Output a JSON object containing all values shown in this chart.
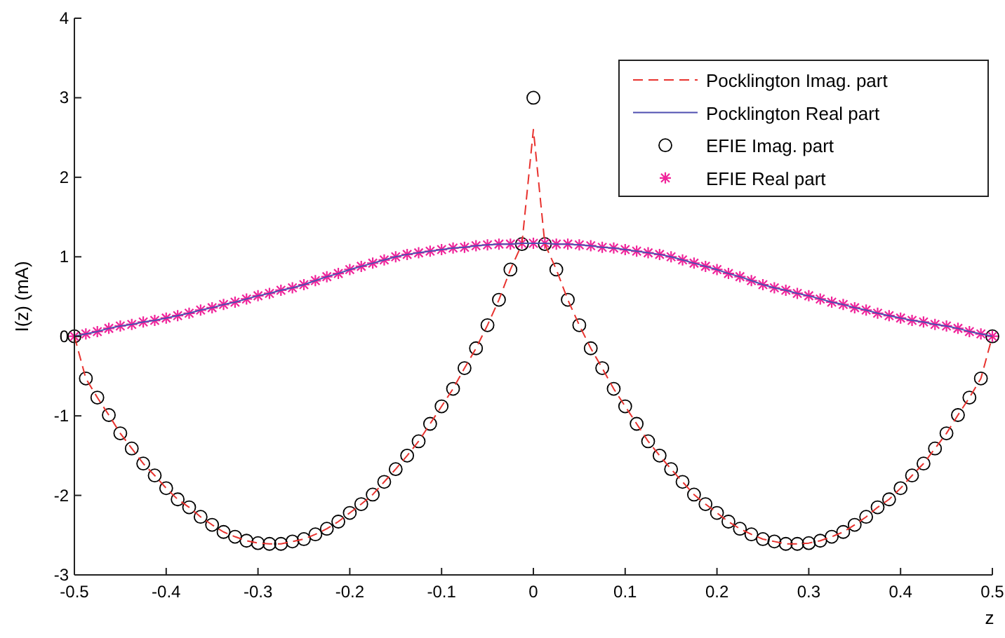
{
  "chart_data": {
    "type": "line",
    "xlabel": "z",
    "ylabel": "I(z) (mA)",
    "x": [
      -0.5,
      -0.4875,
      -0.475,
      -0.4625,
      -0.45,
      -0.4375,
      -0.425,
      -0.4125,
      -0.4,
      -0.3875,
      -0.375,
      -0.3625,
      -0.35,
      -0.3375,
      -0.325,
      -0.3125,
      -0.3,
      -0.2875,
      -0.275,
      -0.2625,
      -0.25,
      -0.2375,
      -0.225,
      -0.2125,
      -0.2,
      -0.1875,
      -0.175,
      -0.1625,
      -0.15,
      -0.1375,
      -0.125,
      -0.1125,
      -0.1,
      -0.0875,
      -0.075,
      -0.0625,
      -0.05,
      -0.0375,
      -0.025,
      -0.0125,
      0,
      0.0125,
      0.025,
      0.0375,
      0.05,
      0.0625,
      0.075,
      0.0875,
      0.1,
      0.1125,
      0.125,
      0.1375,
      0.15,
      0.1625,
      0.175,
      0.1875,
      0.2,
      0.2125,
      0.225,
      0.2375,
      0.25,
      0.2625,
      0.275,
      0.2875,
      0.3,
      0.3125,
      0.325,
      0.3375,
      0.35,
      0.3625,
      0.375,
      0.3875,
      0.4,
      0.4125,
      0.425,
      0.4375,
      0.45,
      0.4625,
      0.475,
      0.4875,
      0.5
    ],
    "series": [
      {
        "name": "Pocklington Imag. part",
        "line_style": "dashed",
        "color": "#e8322e",
        "values": [
          0,
          -0.53,
          -0.77,
          -0.99,
          -1.22,
          -1.41,
          -1.6,
          -1.75,
          -1.91,
          -2.05,
          -2.15,
          -2.27,
          -2.37,
          -2.46,
          -2.52,
          -2.57,
          -2.6,
          -2.61,
          -2.61,
          -2.58,
          -2.55,
          -2.49,
          -2.42,
          -2.33,
          -2.22,
          -2.11,
          -1.99,
          -1.83,
          -1.67,
          -1.5,
          -1.32,
          -1.1,
          -0.88,
          -0.66,
          -0.4,
          -0.15,
          0.14,
          0.46,
          0.84,
          1.16,
          2.6,
          1.16,
          0.84,
          0.46,
          0.14,
          -0.15,
          -0.4,
          -0.66,
          -0.88,
          -1.1,
          -1.32,
          -1.5,
          -1.67,
          -1.83,
          -1.99,
          -2.11,
          -2.22,
          -2.33,
          -2.42,
          -2.49,
          -2.55,
          -2.58,
          -2.61,
          -2.61,
          -2.6,
          -2.57,
          -2.52,
          -2.46,
          -2.37,
          -2.27,
          -2.15,
          -2.05,
          -1.91,
          -1.75,
          -1.6,
          -1.41,
          -1.22,
          -0.99,
          -0.77,
          -0.53,
          0
        ]
      },
      {
        "name": "Pocklington Real part",
        "line_style": "solid",
        "color": "#4f4fb0",
        "values": [
          0,
          0.03,
          0.06,
          0.1,
          0.13,
          0.15,
          0.18,
          0.2,
          0.23,
          0.26,
          0.29,
          0.33,
          0.36,
          0.4,
          0.43,
          0.47,
          0.51,
          0.54,
          0.58,
          0.61,
          0.65,
          0.7,
          0.75,
          0.79,
          0.84,
          0.88,
          0.92,
          0.96,
          1.0,
          1.03,
          1.05,
          1.07,
          1.09,
          1.11,
          1.12,
          1.14,
          1.15,
          1.16,
          1.16,
          1.17,
          1.17,
          1.17,
          1.16,
          1.16,
          1.15,
          1.14,
          1.12,
          1.11,
          1.09,
          1.07,
          1.05,
          1.03,
          1.0,
          0.96,
          0.92,
          0.88,
          0.84,
          0.79,
          0.75,
          0.7,
          0.65,
          0.61,
          0.58,
          0.54,
          0.51,
          0.47,
          0.43,
          0.4,
          0.36,
          0.33,
          0.29,
          0.26,
          0.23,
          0.2,
          0.18,
          0.15,
          0.13,
          0.1,
          0.06,
          0.03,
          0
        ]
      },
      {
        "name": "EFIE Imag. part",
        "type": "scatter",
        "marker": "circle",
        "color": "#000000",
        "values": [
          0,
          -0.53,
          -0.77,
          -0.99,
          -1.22,
          -1.41,
          -1.6,
          -1.75,
          -1.91,
          -2.05,
          -2.15,
          -2.27,
          -2.37,
          -2.46,
          -2.52,
          -2.57,
          -2.6,
          -2.61,
          -2.61,
          -2.58,
          -2.55,
          -2.49,
          -2.42,
          -2.33,
          -2.22,
          -2.11,
          -1.99,
          -1.83,
          -1.67,
          -1.5,
          -1.32,
          -1.1,
          -0.88,
          -0.66,
          -0.4,
          -0.15,
          0.14,
          0.46,
          0.84,
          1.16,
          3,
          1.16,
          0.84,
          0.46,
          0.14,
          -0.15,
          -0.4,
          -0.66,
          -0.88,
          -1.1,
          -1.32,
          -1.5,
          -1.67,
          -1.83,
          -1.99,
          -2.11,
          -2.22,
          -2.33,
          -2.42,
          -2.49,
          -2.55,
          -2.58,
          -2.61,
          -2.61,
          -2.6,
          -2.57,
          -2.52,
          -2.46,
          -2.37,
          -2.27,
          -2.15,
          -2.05,
          -1.91,
          -1.75,
          -1.6,
          -1.41,
          -1.22,
          -0.99,
          -0.77,
          -0.53,
          0
        ]
      },
      {
        "name": "EFIE Real part",
        "type": "scatter",
        "marker": "cross",
        "color": "#f0249a",
        "values": [
          0,
          0.03,
          0.06,
          0.1,
          0.13,
          0.15,
          0.18,
          0.2,
          0.23,
          0.26,
          0.29,
          0.33,
          0.36,
          0.4,
          0.43,
          0.47,
          0.51,
          0.54,
          0.58,
          0.61,
          0.65,
          0.7,
          0.75,
          0.79,
          0.84,
          0.88,
          0.92,
          0.96,
          1.0,
          1.03,
          1.05,
          1.07,
          1.09,
          1.11,
          1.12,
          1.14,
          1.15,
          1.16,
          1.16,
          1.17,
          1.17,
          1.17,
          1.16,
          1.16,
          1.15,
          1.14,
          1.12,
          1.11,
          1.09,
          1.07,
          1.05,
          1.03,
          1.0,
          0.96,
          0.92,
          0.88,
          0.84,
          0.79,
          0.75,
          0.7,
          0.65,
          0.61,
          0.58,
          0.54,
          0.51,
          0.47,
          0.43,
          0.4,
          0.36,
          0.33,
          0.29,
          0.26,
          0.23,
          0.2,
          0.18,
          0.15,
          0.13,
          0.1,
          0.06,
          0.03,
          0
        ]
      }
    ],
    "xlim": [
      -0.5,
      0.5
    ],
    "xticks": [
      -0.5,
      -0.4,
      -0.3,
      -0.2,
      -0.1,
      0,
      0.1,
      0.2,
      0.3,
      0.4,
      0.5
    ],
    "ylim": [
      -3,
      4
    ],
    "yticks": [
      -3,
      -2,
      -1,
      0,
      1,
      2,
      3,
      4
    ],
    "legend": "top right"
  }
}
